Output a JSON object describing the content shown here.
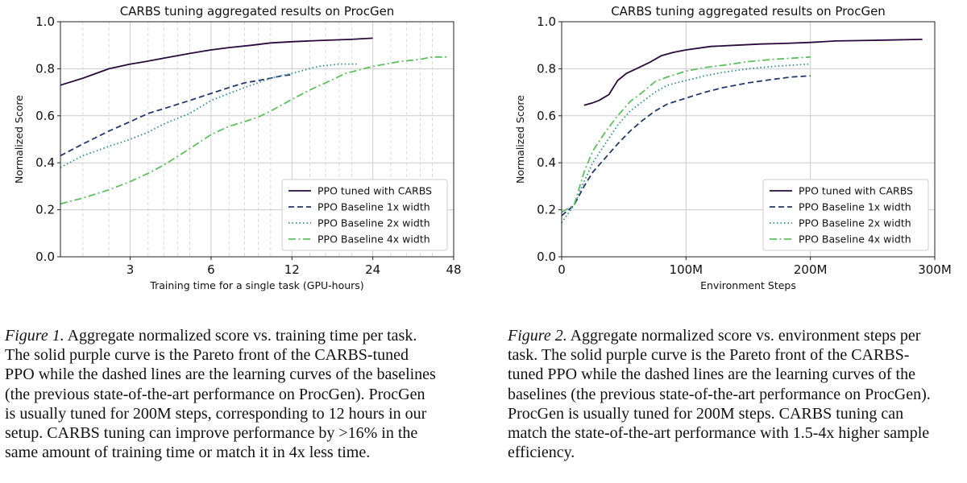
{
  "figures": [
    {
      "chart_data": {
        "type": "line",
        "title": "CARBS tuning aggregated results on ProcGen",
        "xlabel": "Training time for a single task (GPU-hours)",
        "ylabel": "Normalized Score",
        "x_scale": "log2",
        "xlim": [
          1.65,
          48
        ],
        "ylim": [
          0.0,
          1.0
        ],
        "x_ticks": [
          3,
          6,
          12,
          24,
          48
        ],
        "x_tick_labels": [
          "3",
          "6",
          "12",
          "24",
          "48"
        ],
        "y_ticks": [
          0.0,
          0.2,
          0.4,
          0.6,
          0.8,
          1.0
        ],
        "y_tick_labels": [
          "0.0",
          "0.2",
          "0.4",
          "0.6",
          "0.8",
          "1.0"
        ],
        "grid": true,
        "legend_position": "lower right",
        "series": [
          {
            "name": "PPO tuned with CARBS",
            "color": "#2a0a3c",
            "style": "solid",
            "points": [
              [
                1.65,
                0.73
              ],
              [
                2.0,
                0.76
              ],
              [
                2.5,
                0.8
              ],
              [
                3.0,
                0.82
              ],
              [
                3.4,
                0.83
              ],
              [
                4.0,
                0.845
              ],
              [
                5.0,
                0.865
              ],
              [
                6.0,
                0.88
              ],
              [
                7.0,
                0.89
              ],
              [
                8.5,
                0.9
              ],
              [
                10.0,
                0.91
              ],
              [
                12.0,
                0.915
              ],
              [
                15.0,
                0.92
              ],
              [
                20.0,
                0.925
              ],
              [
                24.0,
                0.93
              ]
            ]
          },
          {
            "name": "PPO Baseline 1x width",
            "color": "#22386e",
            "style": "dashed",
            "points": [
              [
                1.65,
                0.43
              ],
              [
                2.0,
                0.48
              ],
              [
                2.5,
                0.535
              ],
              [
                3.0,
                0.575
              ],
              [
                3.5,
                0.61
              ],
              [
                4.0,
                0.63
              ],
              [
                5.0,
                0.665
              ],
              [
                6.0,
                0.695
              ],
              [
                7.0,
                0.72
              ],
              [
                8.0,
                0.74
              ],
              [
                9.0,
                0.75
              ],
              [
                10.0,
                0.76
              ],
              [
                11.0,
                0.77
              ],
              [
                12.0,
                0.775
              ]
            ]
          },
          {
            "name": "PPO Baseline 2x width",
            "color": "#2a8c8c",
            "style": "dotted",
            "points": [
              [
                1.65,
                0.38
              ],
              [
                2.0,
                0.43
              ],
              [
                2.5,
                0.47
              ],
              [
                3.0,
                0.5
              ],
              [
                3.5,
                0.53
              ],
              [
                4.0,
                0.565
              ],
              [
                5.0,
                0.61
              ],
              [
                6.0,
                0.665
              ],
              [
                7.0,
                0.695
              ],
              [
                8.0,
                0.72
              ],
              [
                10.0,
                0.76
              ],
              [
                12.0,
                0.78
              ],
              [
                15.0,
                0.81
              ],
              [
                18.0,
                0.82
              ],
              [
                21.0,
                0.82
              ]
            ]
          },
          {
            "name": "PPO Baseline 4x width",
            "color": "#5cc15c",
            "style": "dashdot",
            "points": [
              [
                1.65,
                0.225
              ],
              [
                2.0,
                0.25
              ],
              [
                2.5,
                0.285
              ],
              [
                3.0,
                0.32
              ],
              [
                3.5,
                0.355
              ],
              [
                4.0,
                0.39
              ],
              [
                5.0,
                0.46
              ],
              [
                6.0,
                0.52
              ],
              [
                7.0,
                0.555
              ],
              [
                8.0,
                0.575
              ],
              [
                9.0,
                0.595
              ],
              [
                10.0,
                0.62
              ],
              [
                12.0,
                0.67
              ],
              [
                14.0,
                0.71
              ],
              [
                16.0,
                0.74
              ],
              [
                19.0,
                0.78
              ],
              [
                24.0,
                0.81
              ],
              [
                30.0,
                0.83
              ],
              [
                36.0,
                0.84
              ],
              [
                40.0,
                0.85
              ],
              [
                46.0,
                0.85
              ]
            ]
          }
        ]
      }
    },
    {
      "chart_data": {
        "type": "line",
        "title": "CARBS tuning aggregated results on ProcGen",
        "xlabel": "Environment Steps",
        "ylabel": "Normalized Score",
        "x_scale": "linear",
        "xlim": [
          0,
          300
        ],
        "x_unit": "M steps",
        "ylim": [
          0.0,
          1.0
        ],
        "x_ticks": [
          0,
          100,
          200,
          300
        ],
        "x_tick_labels": [
          "0",
          "100M",
          "200M",
          "300M"
        ],
        "y_ticks": [
          0.0,
          0.2,
          0.4,
          0.6,
          0.8,
          1.0
        ],
        "y_tick_labels": [
          "0.0",
          "0.2",
          "0.4",
          "0.6",
          "0.8",
          "1.0"
        ],
        "grid": true,
        "legend_position": "lower right",
        "series": [
          {
            "name": "PPO tuned with CARBS",
            "color": "#2a0a3c",
            "style": "solid",
            "points": [
              [
                18,
                0.645
              ],
              [
                25,
                0.655
              ],
              [
                30,
                0.665
              ],
              [
                38,
                0.69
              ],
              [
                45,
                0.75
              ],
              [
                52,
                0.78
              ],
              [
                60,
                0.8
              ],
              [
                70,
                0.825
              ],
              [
                80,
                0.855
              ],
              [
                90,
                0.87
              ],
              [
                100,
                0.88
              ],
              [
                120,
                0.895
              ],
              [
                140,
                0.9
              ],
              [
                160,
                0.905
              ],
              [
                180,
                0.908
              ],
              [
                200,
                0.912
              ],
              [
                220,
                0.918
              ],
              [
                240,
                0.92
              ],
              [
                260,
                0.922
              ],
              [
                290,
                0.925
              ]
            ]
          },
          {
            "name": "PPO Baseline 1x width",
            "color": "#22386e",
            "style": "dashed",
            "points": [
              [
                0,
                0.175
              ],
              [
                10,
                0.22
              ],
              [
                18,
                0.3
              ],
              [
                25,
                0.36
              ],
              [
                35,
                0.42
              ],
              [
                45,
                0.48
              ],
              [
                55,
                0.535
              ],
              [
                65,
                0.58
              ],
              [
                75,
                0.62
              ],
              [
                85,
                0.65
              ],
              [
                100,
                0.675
              ],
              [
                115,
                0.7
              ],
              [
                130,
                0.72
              ],
              [
                150,
                0.74
              ],
              [
                170,
                0.755
              ],
              [
                185,
                0.765
              ],
              [
                200,
                0.77
              ]
            ]
          },
          {
            "name": "PPO Baseline 2x width",
            "color": "#2a8c8c",
            "style": "dotted",
            "points": [
              [
                0,
                0.145
              ],
              [
                10,
                0.22
              ],
              [
                18,
                0.32
              ],
              [
                25,
                0.4
              ],
              [
                35,
                0.48
              ],
              [
                45,
                0.56
              ],
              [
                55,
                0.62
              ],
              [
                65,
                0.66
              ],
              [
                75,
                0.7
              ],
              [
                85,
                0.73
              ],
              [
                100,
                0.75
              ],
              [
                115,
                0.77
              ],
              [
                130,
                0.785
              ],
              [
                150,
                0.8
              ],
              [
                170,
                0.81
              ],
              [
                185,
                0.815
              ],
              [
                200,
                0.82
              ]
            ]
          },
          {
            "name": "PPO Baseline 4x width",
            "color": "#5cc15c",
            "style": "dashdot",
            "points": [
              [
                0,
                0.19
              ],
              [
                10,
                0.22
              ],
              [
                18,
                0.36
              ],
              [
                25,
                0.45
              ],
              [
                35,
                0.53
              ],
              [
                45,
                0.6
              ],
              [
                55,
                0.66
              ],
              [
                65,
                0.7
              ],
              [
                75,
                0.745
              ],
              [
                85,
                0.765
              ],
              [
                100,
                0.79
              ],
              [
                115,
                0.805
              ],
              [
                130,
                0.815
              ],
              [
                150,
                0.83
              ],
              [
                170,
                0.84
              ],
              [
                185,
                0.845
              ],
              [
                200,
                0.85
              ]
            ]
          }
        ]
      }
    }
  ],
  "captions": [
    {
      "label": "Figure 1.",
      "lines": [
        " Aggregate normalized score vs.  training time per task.",
        "The solid purple curve is the Pareto front of the CARBS-tuned",
        "PPO while the dashed lines are the learning curves of the baselines",
        "(the previous state-of-the-art performance on ProcGen).  ProcGen",
        "is usually tuned for 200M steps, corresponding to 12 hours in our",
        "setup. CARBS tuning can improve performance by >16% in the",
        "same amount of training time or match it in 4x less time."
      ]
    },
    {
      "label": "Figure 2.",
      "lines": [
        " Aggregate normalized score vs. environment steps per",
        "task.  The solid purple curve is the Pareto front of the CARBS-",
        "tuned PPO while the dashed lines are the learning curves of the",
        "baselines (the previous state-of-the-art performance on ProcGen).",
        "ProcGen is usually tuned for 200M steps.  CARBS tuning can",
        "match the state-of-the-art performance with 1.5-4x higher sample",
        "efficiency."
      ]
    }
  ]
}
